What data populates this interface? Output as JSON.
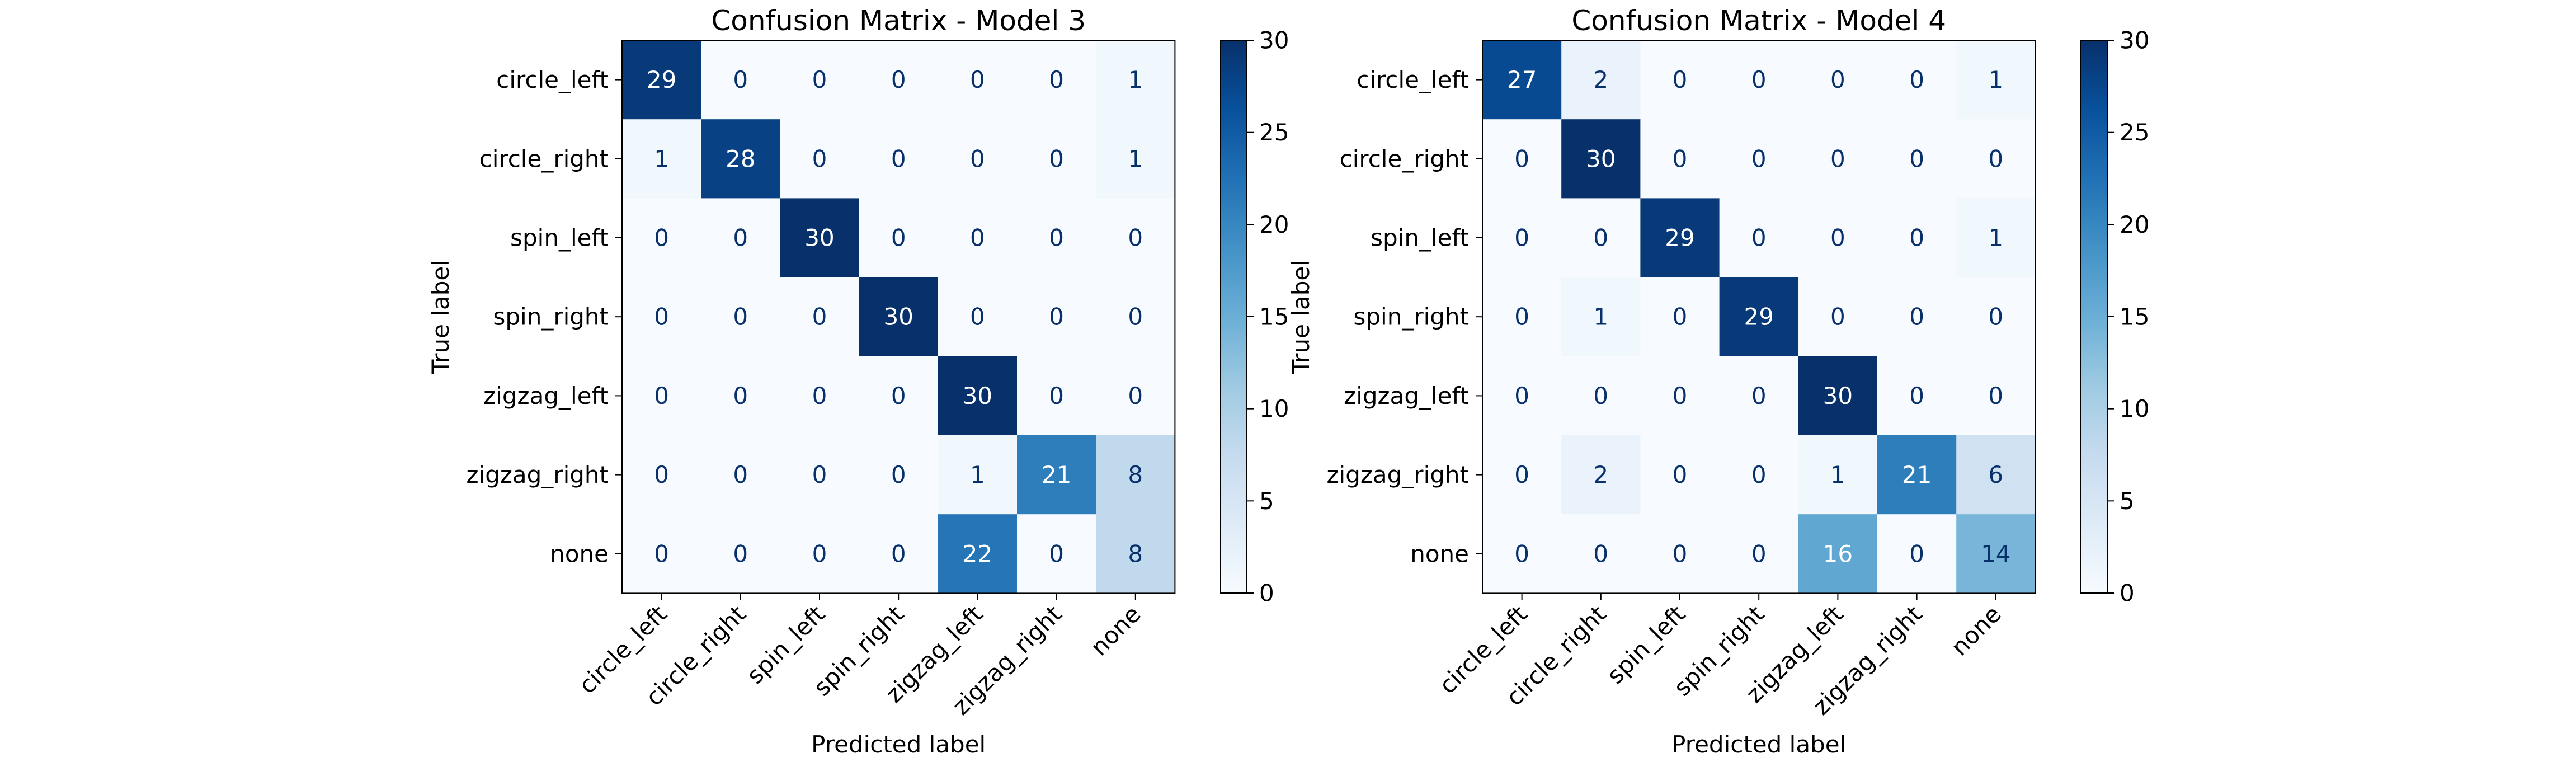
{
  "chart_data": [
    {
      "type": "heatmap",
      "title": "Confusion Matrix - Model 3",
      "xlabel": "Predicted label",
      "ylabel": "True label",
      "x_categories": [
        "circle_left",
        "circle_right",
        "spin_left",
        "spin_right",
        "zigzag_left",
        "zigzag_right",
        "none"
      ],
      "y_categories": [
        "circle_left",
        "circle_right",
        "spin_left",
        "spin_right",
        "zigzag_left",
        "zigzag_right",
        "none"
      ],
      "values": [
        [
          29,
          0,
          0,
          0,
          0,
          0,
          1
        ],
        [
          1,
          28,
          0,
          0,
          0,
          0,
          1
        ],
        [
          0,
          0,
          30,
          0,
          0,
          0,
          0
        ],
        [
          0,
          0,
          0,
          30,
          0,
          0,
          0
        ],
        [
          0,
          0,
          0,
          0,
          30,
          0,
          0
        ],
        [
          0,
          0,
          0,
          0,
          1,
          21,
          8
        ],
        [
          0,
          0,
          0,
          0,
          22,
          0,
          8
        ]
      ],
      "colorbar": {
        "min": 0,
        "max": 30,
        "ticks": [
          "0",
          "5",
          "10",
          "15",
          "20",
          "25",
          "30"
        ]
      },
      "colormap": "Blues"
    },
    {
      "type": "heatmap",
      "title": "Confusion Matrix - Model 4",
      "xlabel": "Predicted label",
      "ylabel": "True label",
      "x_categories": [
        "circle_left",
        "circle_right",
        "spin_left",
        "spin_right",
        "zigzag_left",
        "zigzag_right",
        "none"
      ],
      "y_categories": [
        "circle_left",
        "circle_right",
        "spin_left",
        "spin_right",
        "zigzag_left",
        "zigzag_right",
        "none"
      ],
      "values": [
        [
          27,
          2,
          0,
          0,
          0,
          0,
          1
        ],
        [
          0,
          30,
          0,
          0,
          0,
          0,
          0
        ],
        [
          0,
          0,
          29,
          0,
          0,
          0,
          1
        ],
        [
          0,
          1,
          0,
          29,
          0,
          0,
          0
        ],
        [
          0,
          0,
          0,
          0,
          30,
          0,
          0
        ],
        [
          0,
          2,
          0,
          0,
          1,
          21,
          6
        ],
        [
          0,
          0,
          0,
          0,
          16,
          0,
          14
        ]
      ],
      "colorbar": {
        "min": 0,
        "max": 30,
        "ticks": [
          "0",
          "5",
          "10",
          "15",
          "20",
          "25",
          "30"
        ]
      },
      "colormap": "Blues"
    }
  ]
}
